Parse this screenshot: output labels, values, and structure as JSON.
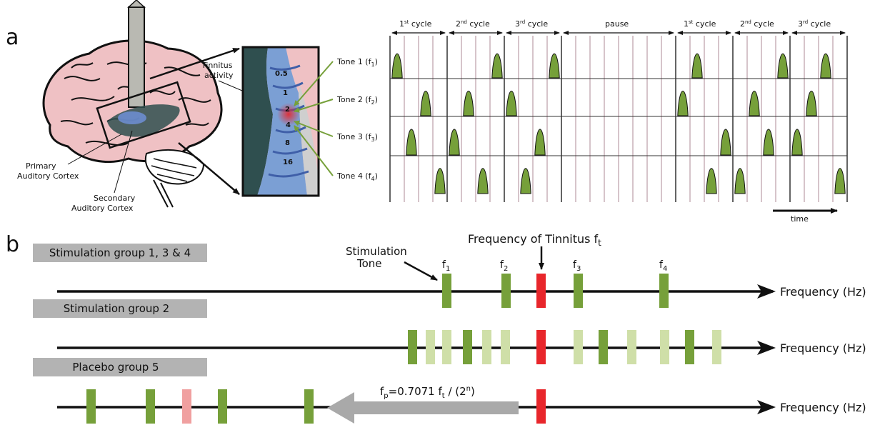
{
  "panel_a": {
    "label": "a",
    "brain": {
      "tinnitus_activity_line1": "Tinnitus",
      "tinnitus_activity_line2": "activity",
      "primary_line1": "Primary",
      "primary_line2": "Auditory Cortex",
      "secondary_line1": "Secondary",
      "secondary_line2": "Auditory Cortex",
      "tonotopic_bands": [
        "0.5",
        "1",
        "2",
        "4",
        "8",
        "16"
      ]
    },
    "tones": [
      {
        "name": "Tone 1 (f",
        "sub": "1",
        "close": ")"
      },
      {
        "name": "Tone 2 (f",
        "sub": "2",
        "close": ")"
      },
      {
        "name": "Tone 3 (f",
        "sub": "3",
        "close": ")"
      },
      {
        "name": "Tone 4 (f",
        "sub": "4",
        "close": ")"
      }
    ],
    "cycles": [
      {
        "label": "1",
        "sup": "st",
        "rest": " cycle"
      },
      {
        "label": "2",
        "sup": "nd",
        "rest": " cycle"
      },
      {
        "label": "3",
        "sup": "rd",
        "rest": " cycle"
      },
      {
        "label": "pause",
        "sup": "",
        "rest": ""
      },
      {
        "label": "1",
        "sup": "st",
        "rest": " cycle"
      },
      {
        "label": "2",
        "sup": "nd",
        "rest": " cycle"
      },
      {
        "label": "3",
        "sup": "rd",
        "rest": " cycle"
      }
    ],
    "time_label": "time",
    "pulse_sequence": {
      "block1": [
        1,
        3,
        2,
        4,
        3,
        2,
        4,
        1,
        2,
        4,
        3,
        1
      ],
      "block2": [
        2,
        1,
        4,
        3,
        4,
        2,
        3,
        1,
        3,
        2,
        1,
        4
      ]
    }
  },
  "panel_b": {
    "label": "b",
    "tinnitus_freq_label": "Frequency of Tinnitus f",
    "tinnitus_freq_sub": "t",
    "stimulation_tone_line1": "Stimulation",
    "stimulation_tone_line2": "Tone",
    "groups": [
      {
        "label": "Stimulation group 1, 3 & 4"
      },
      {
        "label": "Stimulation group 2"
      },
      {
        "label": "Placebo group 5"
      }
    ],
    "axis_label": "Frequency (Hz)",
    "freq_labels": [
      {
        "base": "f",
        "sub": "1"
      },
      {
        "base": "f",
        "sub": "2"
      },
      {
        "base": "f",
        "sub": "3"
      },
      {
        "base": "f",
        "sub": "4"
      }
    ],
    "placebo_formula": {
      "p1": "f",
      "p1sub": "p",
      "p2": "=0.7071 f",
      "p2sub": "t",
      "p3": " / (2",
      "p3sup": "n",
      "p4": ")"
    },
    "colors": {
      "tone": "#76a03a",
      "tone_light": "#cfdfa8",
      "tinnitus": "#e8262b",
      "placebo_light": "#f0a0a0",
      "group_box": "#b3b3b3",
      "arrow_gray": "#a9a9a9"
    }
  }
}
